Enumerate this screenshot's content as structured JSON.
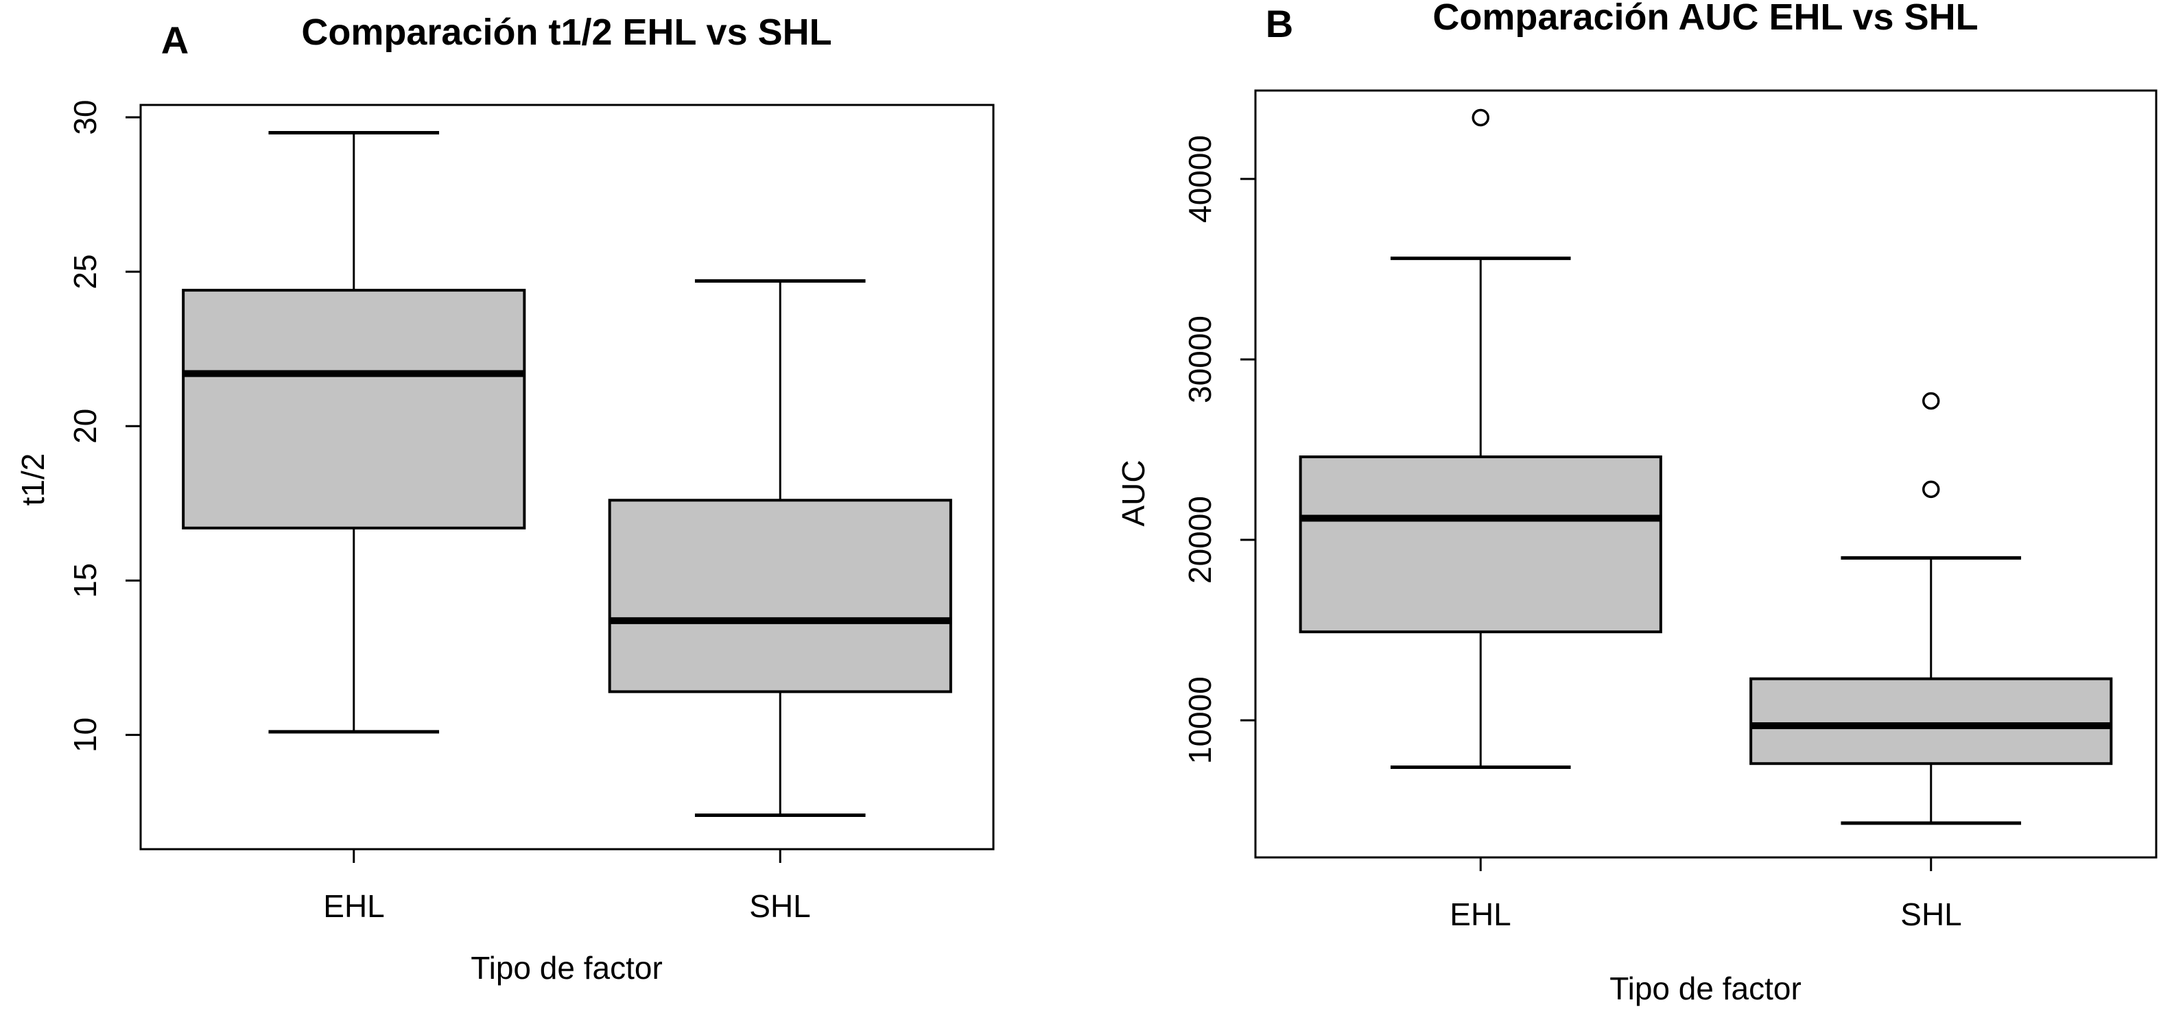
{
  "figure": {
    "background": "#ffffff",
    "ink_color": "#000000",
    "box_fill": "#c3c3c3"
  },
  "chart_data": [
    {
      "type": "boxplot",
      "panel_label": "A",
      "title": "Comparación t1/2 EHL vs SHL",
      "xlabel": "Tipo de factor",
      "ylabel": "t1/2",
      "categories": [
        "EHL",
        "SHL"
      ],
      "yticks": [
        10,
        15,
        20,
        25,
        30
      ],
      "ylim": [
        6.3,
        30.4
      ],
      "grid": false,
      "legend": null,
      "boxes": [
        {
          "category": "EHL",
          "whisker_low": 10.1,
          "q1": 16.7,
          "median": 21.7,
          "q3": 24.4,
          "whisker_high": 29.5,
          "outliers": []
        },
        {
          "category": "SHL",
          "whisker_low": 7.4,
          "q1": 11.4,
          "median": 13.7,
          "q3": 17.6,
          "whisker_high": 24.7,
          "outliers": []
        }
      ]
    },
    {
      "type": "boxplot",
      "panel_label": "B",
      "title": "Comparación AUC EHL vs SHL",
      "xlabel": "Tipo de factor",
      "ylabel": "AUC",
      "categories": [
        "EHL",
        "SHL"
      ],
      "yticks": [
        10000,
        20000,
        30000,
        40000
      ],
      "ylim": [
        2400,
        44900
      ],
      "grid": false,
      "legend": null,
      "boxes": [
        {
          "category": "EHL",
          "whisker_low": 7400,
          "q1": 14900,
          "median": 21200,
          "q3": 24600,
          "whisker_high": 35600,
          "outliers": [
            43400
          ]
        },
        {
          "category": "SHL",
          "whisker_low": 4300,
          "q1": 7600,
          "median": 9700,
          "q3": 12300,
          "whisker_high": 19000,
          "outliers": [
            27700,
            22800
          ]
        }
      ]
    }
  ]
}
